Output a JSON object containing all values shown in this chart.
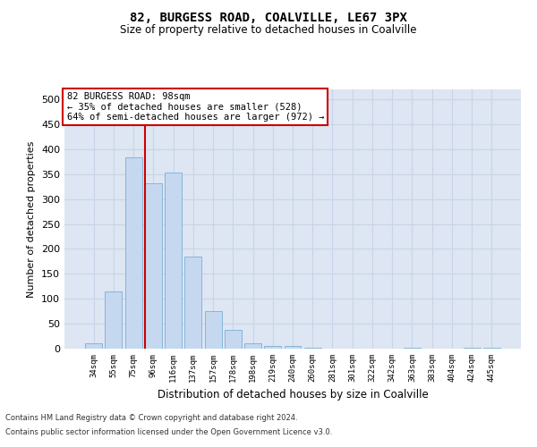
{
  "title1": "82, BURGESS ROAD, COALVILLE, LE67 3PX",
  "title2": "Size of property relative to detached houses in Coalville",
  "xlabel": "Distribution of detached houses by size in Coalville",
  "ylabel": "Number of detached properties",
  "categories": [
    "34sqm",
    "55sqm",
    "75sqm",
    "96sqm",
    "116sqm",
    "137sqm",
    "157sqm",
    "178sqm",
    "198sqm",
    "219sqm",
    "240sqm",
    "260sqm",
    "281sqm",
    "301sqm",
    "322sqm",
    "342sqm",
    "363sqm",
    "383sqm",
    "404sqm",
    "424sqm",
    "445sqm"
  ],
  "values": [
    10,
    114,
    383,
    332,
    354,
    185,
    76,
    38,
    11,
    6,
    5,
    1,
    0,
    0,
    0,
    0,
    2,
    0,
    0,
    2,
    2
  ],
  "bar_color": "#c5d8f0",
  "bar_edge_color": "#7aafd4",
  "vline_x_index": 3,
  "vline_color": "#cc0000",
  "annotation_text": "82 BURGESS ROAD: 98sqm\n← 35% of detached houses are smaller (528)\n64% of semi-detached houses are larger (972) →",
  "annotation_box_color": "#ffffff",
  "annotation_box_edge": "#cc0000",
  "ylim": [
    0,
    520
  ],
  "yticks": [
    0,
    50,
    100,
    150,
    200,
    250,
    300,
    350,
    400,
    450,
    500
  ],
  "grid_color": "#c8d4e8",
  "plot_bg_color": "#dde6f2",
  "fig_bg_color": "#ffffff",
  "footer1": "Contains HM Land Registry data © Crown copyright and database right 2024.",
  "footer2": "Contains public sector information licensed under the Open Government Licence v3.0."
}
